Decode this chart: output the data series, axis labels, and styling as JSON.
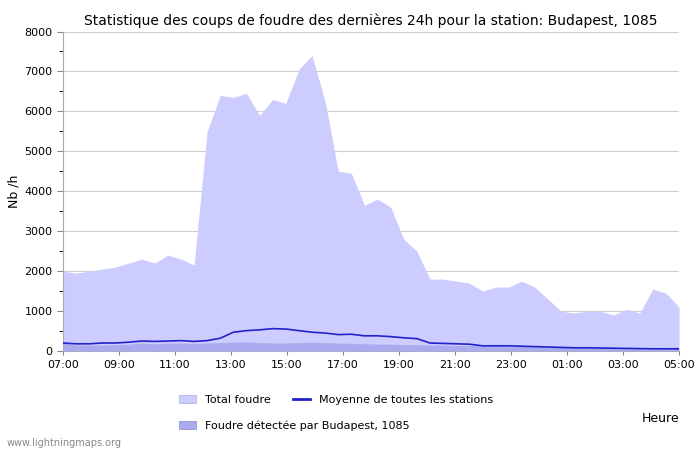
{
  "title": "Statistique des coups de foudre des dernières 24h pour la station: Budapest, 1085",
  "xlabel": "Heure",
  "ylabel": "Nb /h",
  "watermark": "www.lightningmaps.org",
  "x_ticks": [
    "07:00",
    "09:00",
    "11:00",
    "13:00",
    "15:00",
    "17:00",
    "19:00",
    "21:00",
    "23:00",
    "01:00",
    "03:00",
    "05:00"
  ],
  "ylim": [
    0,
    8000
  ],
  "yticks": [
    0,
    1000,
    2000,
    3000,
    4000,
    5000,
    6000,
    7000,
    8000
  ],
  "total_foudre_color": "#ccccff",
  "detected_color": "#aaaaee",
  "mean_line_color": "#2222cc",
  "background_color": "#ffffff",
  "legend_total": "Total foudre",
  "legend_mean": "Moyenne de toutes les stations",
  "legend_detected": "Foudre détectée par Budapest, 1085",
  "total_foudre": [
    2000,
    1950,
    2000,
    2050,
    2100,
    2200,
    2300,
    2200,
    2400,
    2300,
    2150,
    5500,
    6400,
    6350,
    6450,
    5900,
    6300,
    6200,
    7050,
    7400,
    6250,
    4500,
    4450,
    3650,
    3800,
    3600,
    2800,
    2500,
    1800,
    1800,
    1750,
    1700,
    1500,
    1600,
    1600,
    1750,
    1600,
    1300,
    1000,
    950,
    1000,
    1000,
    900,
    1050,
    950,
    1550,
    1450,
    1100
  ],
  "detected_foudre": [
    200,
    150,
    150,
    150,
    160,
    170,
    200,
    180,
    200,
    200,
    190,
    200,
    210,
    220,
    230,
    210,
    200,
    200,
    210,
    220,
    210,
    200,
    190,
    180,
    175,
    170,
    160,
    155,
    150,
    145,
    140,
    135,
    130,
    125,
    120,
    115,
    110,
    100,
    90,
    80,
    75,
    70,
    65,
    60,
    55,
    50,
    50,
    55
  ],
  "mean_line": [
    200,
    180,
    180,
    200,
    200,
    220,
    250,
    240,
    250,
    260,
    240,
    260,
    320,
    470,
    510,
    530,
    560,
    550,
    510,
    470,
    450,
    410,
    420,
    380,
    380,
    360,
    330,
    310,
    200,
    190,
    180,
    170,
    130,
    130,
    130,
    120,
    110,
    100,
    90,
    80,
    80,
    75,
    70,
    65,
    60,
    55,
    55,
    55
  ]
}
